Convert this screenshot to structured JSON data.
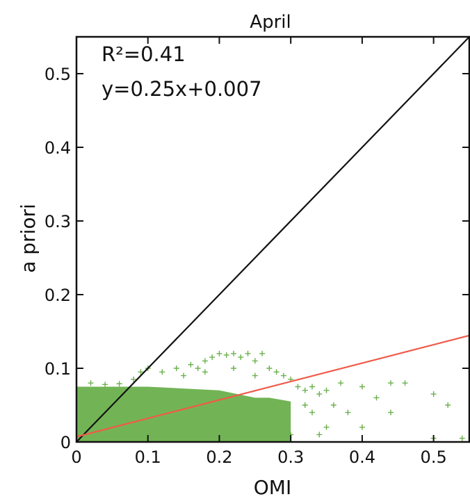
{
  "chart_data": {
    "type": "scatter",
    "title": "April",
    "xlabel": "OMI",
    "ylabel": "a priori",
    "xlim": [
      0,
      0.55
    ],
    "ylim": [
      0,
      0.55
    ],
    "xticks": [
      0,
      0.1,
      0.2,
      0.3,
      0.4,
      0.5
    ],
    "yticks": [
      0,
      0.1,
      0.2,
      0.3,
      0.4,
      0.5
    ],
    "xtick_labels": [
      "0",
      "0.1",
      "0.2",
      "0.3",
      "0.4",
      "0.5"
    ],
    "ytick_labels": [
      "0",
      "0.1",
      "0.2",
      "0.3",
      "0.4",
      "0.5"
    ],
    "grid": false,
    "annotations": {
      "r2": "R²=0.41",
      "equation": "y=0.25x+0.007"
    },
    "lines": {
      "one_to_one": {
        "slope": 1,
        "intercept": 0,
        "color": "#111111"
      },
      "fit": {
        "slope": 0.25,
        "intercept": 0.007,
        "color": "#f05a4a"
      }
    },
    "scatter": {
      "marker": "plus",
      "color": "#6ab04c",
      "dense_region": {
        "x": [
          0.0,
          0.1,
          0.2,
          0.25,
          0.27,
          0.3
        ],
        "y_top": [
          0.075,
          0.075,
          0.07,
          0.06,
          0.06,
          0.055
        ]
      },
      "sparse_points": [
        [
          0.02,
          0.08
        ],
        [
          0.04,
          0.078
        ],
        [
          0.06,
          0.079
        ],
        [
          0.08,
          0.085
        ],
        [
          0.09,
          0.095
        ],
        [
          0.1,
          0.1
        ],
        [
          0.12,
          0.095
        ],
        [
          0.14,
          0.1
        ],
        [
          0.15,
          0.09
        ],
        [
          0.16,
          0.105
        ],
        [
          0.17,
          0.1
        ],
        [
          0.18,
          0.11
        ],
        [
          0.19,
          0.115
        ],
        [
          0.2,
          0.12
        ],
        [
          0.21,
          0.118
        ],
        [
          0.22,
          0.12
        ],
        [
          0.23,
          0.115
        ],
        [
          0.24,
          0.12
        ],
        [
          0.25,
          0.11
        ],
        [
          0.26,
          0.12
        ],
        [
          0.27,
          0.1
        ],
        [
          0.28,
          0.095
        ],
        [
          0.29,
          0.09
        ],
        [
          0.3,
          0.085
        ],
        [
          0.31,
          0.075
        ],
        [
          0.32,
          0.07
        ],
        [
          0.33,
          0.075
        ],
        [
          0.34,
          0.065
        ],
        [
          0.35,
          0.07
        ],
        [
          0.36,
          0.05
        ],
        [
          0.37,
          0.08
        ],
        [
          0.38,
          0.04
        ],
        [
          0.4,
          0.075
        ],
        [
          0.42,
          0.06
        ],
        [
          0.44,
          0.08
        ],
        [
          0.46,
          0.08
        ],
        [
          0.5,
          0.065
        ],
        [
          0.52,
          0.05
        ],
        [
          0.44,
          0.04
        ],
        [
          0.4,
          0.02
        ],
        [
          0.34,
          0.01
        ],
        [
          0.3,
          0.01
        ],
        [
          0.5,
          0.005
        ],
        [
          0.54,
          0.005
        ],
        [
          0.22,
          0.1
        ],
        [
          0.18,
          0.095
        ],
        [
          0.25,
          0.09
        ],
        [
          0.33,
          0.04
        ],
        [
          0.35,
          0.02
        ],
        [
          0.32,
          0.05
        ]
      ]
    }
  }
}
